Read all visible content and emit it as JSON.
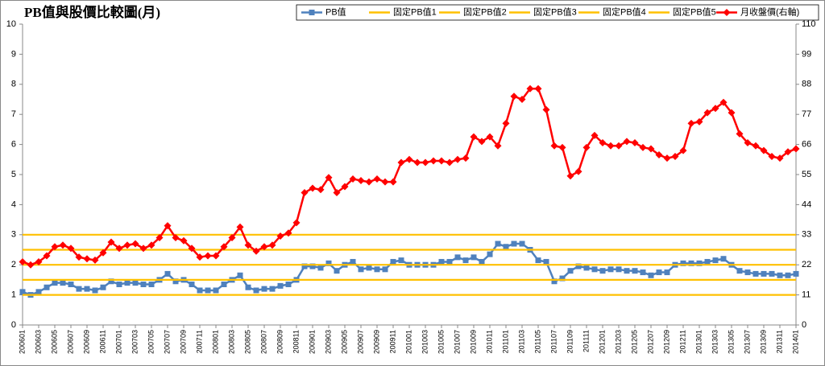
{
  "chart_data": {
    "type": "line",
    "title": "PB值與股價比較圖(月)",
    "categories": [
      "200601",
      null,
      "200603",
      null,
      "200605",
      null,
      "200607",
      null,
      "200609",
      null,
      "200611",
      null,
      "200701",
      null,
      "200703",
      null,
      "200705",
      null,
      "200707",
      null,
      "200709",
      null,
      "200711",
      null,
      "200801",
      null,
      "200803",
      null,
      "200805",
      null,
      "200807",
      null,
      "200809",
      null,
      "200811",
      null,
      "200901",
      null,
      "200903",
      null,
      "200905",
      null,
      "200907",
      null,
      "200909",
      null,
      "200911",
      null,
      "201001",
      null,
      "201003",
      null,
      "201005",
      null,
      "201007",
      null,
      "201009",
      null,
      "201011",
      null,
      "201101",
      null,
      "201103",
      null,
      "201105",
      null,
      "201107",
      null,
      "201109",
      null,
      "201111",
      null,
      "201201",
      null,
      "201203",
      null,
      "201205",
      null,
      "201207",
      null,
      "201209",
      null,
      "201211",
      null,
      "201301",
      null,
      "201303",
      null,
      "201305",
      null,
      "201307",
      null,
      "201309",
      null,
      "201311",
      null,
      "201401"
    ],
    "ylim": [
      0,
      10
    ],
    "yticks": [
      0,
      1,
      2,
      3,
      4,
      5,
      6,
      7,
      8,
      9,
      10
    ],
    "y2lim": [
      0,
      110
    ],
    "y2ticks": [
      0,
      11,
      22,
      33,
      44,
      55,
      66,
      77,
      88,
      99,
      110
    ],
    "grid": false,
    "legend": "top",
    "series": [
      {
        "name": "PB值",
        "color": "#4f81bd",
        "marker": "square",
        "values": [
          1.1,
          1.0,
          1.1,
          1.25,
          1.4,
          1.4,
          1.35,
          1.2,
          1.2,
          1.15,
          1.25,
          1.45,
          1.35,
          1.4,
          1.4,
          1.35,
          1.35,
          1.5,
          1.7,
          1.45,
          1.5,
          1.35,
          1.15,
          1.15,
          1.15,
          1.35,
          1.5,
          1.65,
          1.25,
          1.15,
          1.2,
          1.2,
          1.3,
          1.35,
          1.5,
          1.95,
          1.95,
          1.9,
          2.05,
          1.8,
          2.0,
          2.1,
          1.85,
          1.9,
          1.85,
          1.85,
          2.1,
          2.15,
          2.0,
          2.0,
          2.0,
          2.0,
          2.1,
          2.1,
          2.25,
          2.15,
          2.25,
          2.1,
          2.35,
          2.7,
          2.6,
          2.7,
          2.7,
          2.5,
          2.15,
          2.1,
          1.45,
          1.55,
          1.8,
          1.95,
          1.9,
          1.85,
          1.8,
          1.85,
          1.85,
          1.8,
          1.8,
          1.75,
          1.65,
          1.75,
          1.75,
          2.0,
          2.05,
          2.05,
          2.05,
          2.1,
          2.15,
          2.2,
          2.0,
          1.8,
          1.75,
          1.7,
          1.7,
          1.7,
          1.65,
          1.65,
          1.7
        ]
      },
      {
        "name": "固定PB值1",
        "color": "#ffc000",
        "marker": null,
        "values": [
          1,
          1,
          1,
          1,
          1,
          1,
          1,
          1,
          1,
          1,
          1,
          1,
          1,
          1,
          1,
          1,
          1,
          1,
          1,
          1,
          1,
          1,
          1,
          1,
          1,
          1,
          1,
          1,
          1,
          1,
          1,
          1,
          1,
          1,
          1,
          1,
          1,
          1,
          1,
          1,
          1,
          1,
          1,
          1,
          1,
          1,
          1,
          1,
          1,
          1,
          1,
          1,
          1,
          1,
          1,
          1,
          1,
          1,
          1,
          1,
          1,
          1,
          1,
          1,
          1,
          1,
          1,
          1,
          1,
          1,
          1,
          1,
          1,
          1,
          1,
          1,
          1,
          1,
          1,
          1,
          1,
          1,
          1,
          1,
          1,
          1,
          1,
          1,
          1,
          1,
          1,
          1,
          1,
          1,
          1,
          1,
          1
        ]
      },
      {
        "name": "固定PB值2",
        "color": "#ffc000",
        "marker": null,
        "values": [
          1.5,
          1.5,
          1.5,
          1.5,
          1.5,
          1.5,
          1.5,
          1.5,
          1.5,
          1.5,
          1.5,
          1.5,
          1.5,
          1.5,
          1.5,
          1.5,
          1.5,
          1.5,
          1.5,
          1.5,
          1.5,
          1.5,
          1.5,
          1.5,
          1.5,
          1.5,
          1.5,
          1.5,
          1.5,
          1.5,
          1.5,
          1.5,
          1.5,
          1.5,
          1.5,
          1.5,
          1.5,
          1.5,
          1.5,
          1.5,
          1.5,
          1.5,
          1.5,
          1.5,
          1.5,
          1.5,
          1.5,
          1.5,
          1.5,
          1.5,
          1.5,
          1.5,
          1.5,
          1.5,
          1.5,
          1.5,
          1.5,
          1.5,
          1.5,
          1.5,
          1.5,
          1.5,
          1.5,
          1.5,
          1.5,
          1.5,
          1.5,
          1.5,
          1.5,
          1.5,
          1.5,
          1.5,
          1.5,
          1.5,
          1.5,
          1.5,
          1.5,
          1.5,
          1.5,
          1.5,
          1.5,
          1.5,
          1.5,
          1.5,
          1.5,
          1.5,
          1.5,
          1.5,
          1.5,
          1.5,
          1.5,
          1.5,
          1.5,
          1.5,
          1.5,
          1.5,
          1.5
        ]
      },
      {
        "name": "固定PB值3",
        "color": "#ffc000",
        "marker": null,
        "values": [
          2,
          2,
          2,
          2,
          2,
          2,
          2,
          2,
          2,
          2,
          2,
          2,
          2,
          2,
          2,
          2,
          2,
          2,
          2,
          2,
          2,
          2,
          2,
          2,
          2,
          2,
          2,
          2,
          2,
          2,
          2,
          2,
          2,
          2,
          2,
          2,
          2,
          2,
          2,
          2,
          2,
          2,
          2,
          2,
          2,
          2,
          2,
          2,
          2,
          2,
          2,
          2,
          2,
          2,
          2,
          2,
          2,
          2,
          2,
          2,
          2,
          2,
          2,
          2,
          2,
          2,
          2,
          2,
          2,
          2,
          2,
          2,
          2,
          2,
          2,
          2,
          2,
          2,
          2,
          2,
          2,
          2,
          2,
          2,
          2,
          2,
          2,
          2,
          2,
          2,
          2,
          2,
          2,
          2,
          2,
          2,
          2
        ]
      },
      {
        "name": "固定PB值4",
        "color": "#ffc000",
        "marker": null,
        "values": [
          2.5,
          2.5,
          2.5,
          2.5,
          2.5,
          2.5,
          2.5,
          2.5,
          2.5,
          2.5,
          2.5,
          2.5,
          2.5,
          2.5,
          2.5,
          2.5,
          2.5,
          2.5,
          2.5,
          2.5,
          2.5,
          2.5,
          2.5,
          2.5,
          2.5,
          2.5,
          2.5,
          2.5,
          2.5,
          2.5,
          2.5,
          2.5,
          2.5,
          2.5,
          2.5,
          2.5,
          2.5,
          2.5,
          2.5,
          2.5,
          2.5,
          2.5,
          2.5,
          2.5,
          2.5,
          2.5,
          2.5,
          2.5,
          2.5,
          2.5,
          2.5,
          2.5,
          2.5,
          2.5,
          2.5,
          2.5,
          2.5,
          2.5,
          2.5,
          2.5,
          2.5,
          2.5,
          2.5,
          2.5,
          2.5,
          2.5,
          2.5,
          2.5,
          2.5,
          2.5,
          2.5,
          2.5,
          2.5,
          2.5,
          2.5,
          2.5,
          2.5,
          2.5,
          2.5,
          2.5,
          2.5,
          2.5,
          2.5,
          2.5,
          2.5,
          2.5,
          2.5,
          2.5,
          2.5,
          2.5,
          2.5,
          2.5,
          2.5,
          2.5,
          2.5,
          2.5,
          2.5
        ]
      },
      {
        "name": "固定PB值5",
        "color": "#ffc000",
        "marker": null,
        "values": [
          3,
          3,
          3,
          3,
          3,
          3,
          3,
          3,
          3,
          3,
          3,
          3,
          3,
          3,
          3,
          3,
          3,
          3,
          3,
          3,
          3,
          3,
          3,
          3,
          3,
          3,
          3,
          3,
          3,
          3,
          3,
          3,
          3,
          3,
          3,
          3,
          3,
          3,
          3,
          3,
          3,
          3,
          3,
          3,
          3,
          3,
          3,
          3,
          3,
          3,
          3,
          3,
          3,
          3,
          3,
          3,
          3,
          3,
          3,
          3,
          3,
          3,
          3,
          3,
          3,
          3,
          3,
          3,
          3,
          3,
          3,
          3,
          3,
          3,
          3,
          3,
          3,
          3,
          3,
          3,
          3,
          3,
          3,
          3,
          3,
          3,
          3,
          3,
          3,
          3,
          3,
          3,
          3,
          3,
          3,
          3,
          3
        ]
      },
      {
        "name": "月收盤價(右軸)",
        "color": "#ff0000",
        "marker": "diamond",
        "axis": "y2",
        "values": [
          23.1,
          22,
          23.1,
          25.3,
          28.6,
          29.2,
          28,
          24.8,
          24.2,
          23.7,
          26.4,
          30.3,
          28,
          29.2,
          29.7,
          28,
          29.2,
          31.9,
          36.3,
          31.9,
          30.8,
          28,
          24.8,
          25.3,
          25.3,
          28.6,
          31.9,
          35.8,
          29.2,
          27,
          28.6,
          29.2,
          32.5,
          33.6,
          37.4,
          48.4,
          50,
          49.5,
          53.9,
          48.4,
          50.6,
          53.4,
          52.8,
          52.3,
          53.4,
          52.3,
          52.3,
          59.4,
          60.5,
          59.4,
          59.4,
          60,
          60,
          59.4,
          60.5,
          61,
          68.8,
          67.1,
          68.8,
          65.5,
          73.7,
          83.6,
          82.5,
          86.4,
          86.4,
          78.7,
          65.5,
          64.9,
          54.5,
          56.1,
          64.9,
          69.3,
          66.6,
          65.5,
          65.5,
          67.1,
          66.6,
          64.9,
          64.4,
          62.2,
          61,
          61.6,
          63.8,
          73.7,
          74.3,
          77.6,
          79.2,
          81.4,
          77.6,
          69.9,
          66.6,
          65.5,
          63.8,
          61.6,
          61,
          63.3,
          64.4
        ]
      }
    ]
  }
}
